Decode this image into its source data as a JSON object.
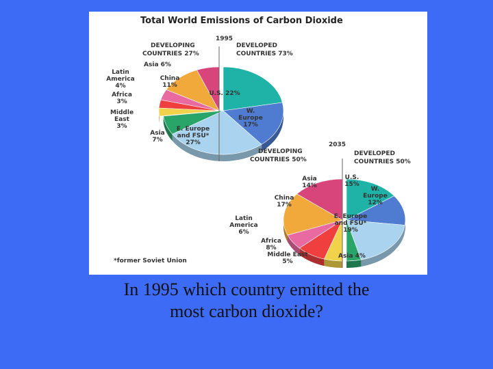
{
  "slide": {
    "question_line1": "In 1995 which country emitted the",
    "question_line2": "most carbon dioxide?"
  },
  "chart_data": {
    "type": "pie",
    "title": "Total World Emissions of Carbon Dioxide",
    "footnote": "*former Soviet Union",
    "pies": [
      {
        "year": "1995",
        "group_labels": {
          "developing_line1": "DEVELOPING",
          "developing_line2": "COUNTRIES 27%",
          "developed_line1": "DEVELOPED",
          "developed_line2": "COUNTRIES 73%"
        },
        "slices": [
          {
            "label": "U.S. 22%",
            "value": 22,
            "group": "developed",
            "color": "#1fb3a8"
          },
          {
            "label": "W. Europe 17%",
            "value": 17,
            "group": "developed",
            "color": "#4f7bd0"
          },
          {
            "label": "E. Europe and FSU* 27%",
            "value": 27,
            "group": "developed",
            "color": "#a9d3ee"
          },
          {
            "label": "Asia 7%",
            "value": 7,
            "group": "developed",
            "color": "#2aa56a"
          },
          {
            "label": "Middle East 3%",
            "value": 3,
            "group": "developing",
            "color": "#f0d34a"
          },
          {
            "label": "Africa 3%",
            "value": 3,
            "group": "developing",
            "color": "#ef3f3f"
          },
          {
            "label": "Latin America 4%",
            "value": 4,
            "group": "developing",
            "color": "#e86aa0"
          },
          {
            "label": "China 11%",
            "value": 11,
            "group": "developing",
            "color": "#f2a93b"
          },
          {
            "label": "Asia 6%",
            "value": 6,
            "group": "developing",
            "color": "#d8457a"
          }
        ]
      },
      {
        "year": "2035",
        "group_labels": {
          "developing_line1": "DEVELOPING",
          "developing_line2": "COUNTRIES 50%",
          "developed_line1": "DEVELOPED",
          "developed_line2": "COUNTRIES 50%"
        },
        "slices": [
          {
            "label": "U.S. 15%",
            "value": 15,
            "group": "developed",
            "color": "#1fb3a8"
          },
          {
            "label": "W. Europe 12%",
            "value": 12,
            "group": "developed",
            "color": "#4f7bd0"
          },
          {
            "label": "E. Europe and FSU* 19%",
            "value": 19,
            "group": "developed",
            "color": "#a9d3ee"
          },
          {
            "label": "Asia 4%",
            "value": 4,
            "group": "developed",
            "color": "#2aa56a"
          },
          {
            "label": "Middle East 5%",
            "value": 5,
            "group": "developing",
            "color": "#f0d34a"
          },
          {
            "label": "Africa 8%",
            "value": 8,
            "group": "developing",
            "color": "#ef3f3f"
          },
          {
            "label": "Latin America 6%",
            "value": 6,
            "group": "developing",
            "color": "#e86aa0"
          },
          {
            "label": "China 17%",
            "value": 17,
            "group": "developing",
            "color": "#f2a93b"
          },
          {
            "label": "Asia 14%",
            "value": 14,
            "group": "developing",
            "color": "#d8457a"
          }
        ]
      }
    ]
  }
}
